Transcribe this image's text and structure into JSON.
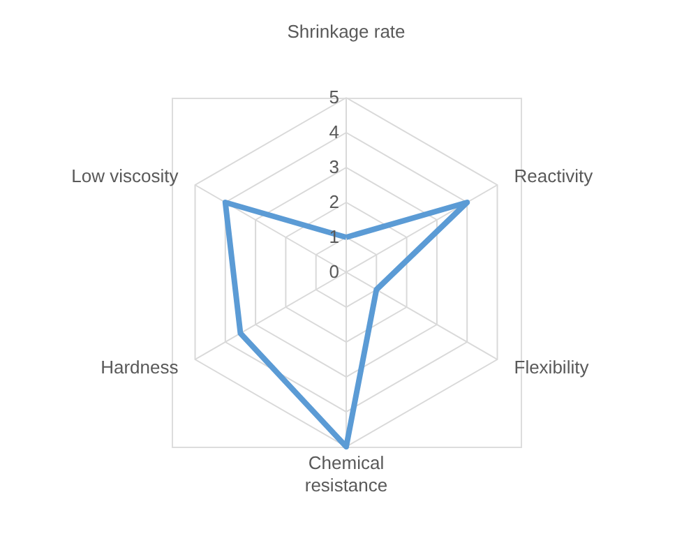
{
  "chart_data": {
    "type": "radar",
    "categories": [
      "Shrinkage rate",
      "Reactivity",
      "Flexibility",
      "Chemical resistance",
      "Hardness",
      "Low viscosity"
    ],
    "series": [
      {
        "color": "#5b9bd5",
        "values": [
          1,
          4,
          1,
          5,
          3.5,
          4
        ]
      }
    ],
    "ylim": [
      0,
      5
    ],
    "yticks": [
      0,
      1,
      2,
      3,
      4,
      5
    ],
    "grid": true,
    "line_style": "solid",
    "marker": "none"
  }
}
